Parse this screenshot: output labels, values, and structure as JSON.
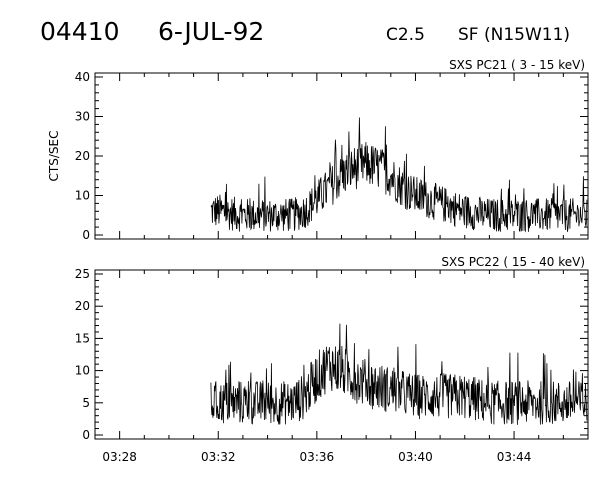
{
  "header": {
    "event_id": "04410",
    "date": "6-JUL-92",
    "goes_class": "C2.5",
    "location": "SF (N15W11)"
  },
  "chart_data": [
    {
      "type": "line",
      "title": "SXS PC21  (  3 - 15 keV)",
      "ylabel": "CTS/SEC",
      "xlabel": "",
      "xlim": [
        "03:27",
        "03:47"
      ],
      "ylim": [
        0,
        40
      ],
      "yticks": [
        0,
        10,
        20,
        30,
        40
      ],
      "xticks": [
        "03:28",
        "03:32",
        "03:36",
        "03:40",
        "03:44"
      ],
      "xtick_labels_visible": false,
      "data_start": "03:31.7",
      "series": [
        {
          "x": [
            "03:31.7",
            "03:32",
            "03:33",
            "03:34",
            "03:35",
            "03:35.5",
            "03:36",
            "03:36.5",
            "03:37",
            "03:37.5",
            "03:38",
            "03:38.5",
            "03:39",
            "03:39.5",
            "03:40",
            "03:40.5",
            "03:41",
            "03:41.5",
            "03:42",
            "03:43",
            "03:44",
            "03:45",
            "03:46",
            "03:47"
          ],
          "values": [
            6,
            6,
            5,
            5,
            5,
            6,
            9,
            12,
            15,
            17,
            18,
            17,
            15,
            12,
            10,
            9,
            8,
            7,
            6,
            5,
            5,
            5,
            5,
            5
          ],
          "noise": 5
        }
      ]
    },
    {
      "type": "line",
      "title": "SXS PC22  ( 15 - 40 keV)",
      "ylabel": "",
      "xlabel": "",
      "xlim": [
        "03:27",
        "03:47"
      ],
      "ylim": [
        0,
        25
      ],
      "yticks": [
        0,
        5,
        10,
        15,
        20,
        25
      ],
      "xticks": [
        "03:28",
        "03:32",
        "03:36",
        "03:40",
        "03:44"
      ],
      "xtick_labels_visible": true,
      "data_start": "03:31.7",
      "series": [
        {
          "x": [
            "03:31.7",
            "03:32",
            "03:33",
            "03:34",
            "03:35",
            "03:35.5",
            "03:36",
            "03:36.5",
            "03:37",
            "03:38",
            "03:39",
            "03:40",
            "03:41",
            "03:42",
            "03:43",
            "03:44",
            "03:45",
            "03:46",
            "03:47"
          ],
          "values": [
            5,
            5,
            5,
            5,
            5,
            6,
            9,
            11,
            10,
            8,
            7,
            6,
            6,
            6,
            5,
            5,
            5,
            5,
            5
          ],
          "noise": 4
        }
      ]
    }
  ]
}
